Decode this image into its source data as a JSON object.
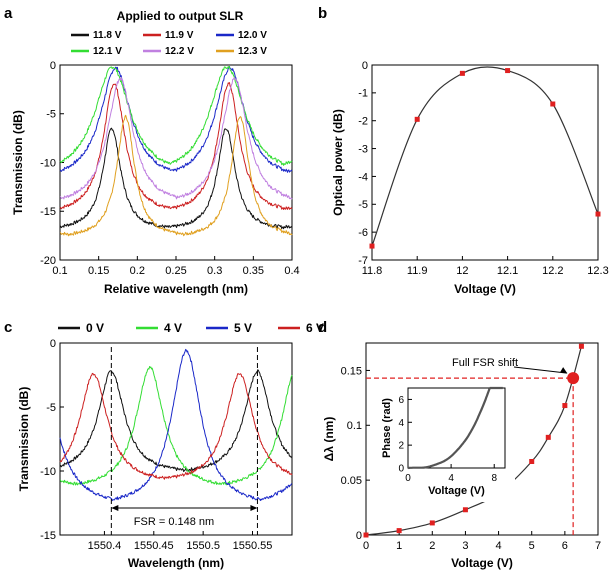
{
  "panels": {
    "a": {
      "label": "a"
    },
    "b": {
      "label": "b"
    },
    "c": {
      "label": "c"
    },
    "d": {
      "label": "d"
    }
  },
  "chart_data": [
    {
      "id": "a",
      "type": "line",
      "title": "Applied to output SLR",
      "xlabel": "Relative wavelength (nm)",
      "ylabel": "Transmission (dB)",
      "xlim": [
        0.1,
        0.4
      ],
      "ylim": [
        -20,
        0
      ],
      "xticks": [
        "0.1",
        "0.15",
        "0.2",
        "0.25",
        "0.3",
        "0.35",
        "0.4"
      ],
      "yticks": [
        "0",
        "-5",
        "-10",
        "-15",
        "-20"
      ],
      "series": [
        {
          "name": "11.8 V",
          "color": "#111111",
          "center": 0.167,
          "fsr": 0.148,
          "peak": -6.5,
          "floor": -17.0,
          "width": 0.014
        },
        {
          "name": "11.9 V",
          "color": "#cc2020",
          "center": 0.17,
          "fsr": 0.148,
          "peak": -1.9,
          "floor": -15.4,
          "width": 0.017
        },
        {
          "name": "12.0 V",
          "color": "#1a28c8",
          "center": 0.172,
          "fsr": 0.148,
          "peak": -0.3,
          "floor": -12.0,
          "width": 0.024
        },
        {
          "name": "12.1 V",
          "color": "#33dd33",
          "center": 0.168,
          "fsr": 0.148,
          "peak": -0.2,
          "floor": -11.6,
          "width": 0.028
        },
        {
          "name": "12.2 V",
          "color": "#c080e0",
          "center": 0.178,
          "fsr": 0.148,
          "peak": -1.4,
          "floor": -14.5,
          "width": 0.02
        },
        {
          "name": "12.3 V",
          "color": "#e0a020",
          "center": 0.185,
          "fsr": 0.148,
          "peak": -5.3,
          "floor": -17.8,
          "width": 0.014
        }
      ]
    },
    {
      "id": "b",
      "type": "scatter",
      "xlabel": "Voltage (V)",
      "ylabel": "Optical power (dB)",
      "xlim": [
        11.8,
        12.3
      ],
      "ylim": [
        -7,
        0
      ],
      "xticks": [
        "11.8",
        "11.9",
        "12",
        "12.1",
        "12.2",
        "12.3"
      ],
      "yticks": [
        "0",
        "-1",
        "-2",
        "-3",
        "-4",
        "-5",
        "-6",
        "-7"
      ],
      "x": [
        11.8,
        11.9,
        12.0,
        12.1,
        12.2,
        12.3
      ],
      "y": [
        -6.5,
        -1.95,
        -0.3,
        -0.2,
        -1.4,
        -5.35
      ],
      "fit_peak": {
        "x": 12.07,
        "y": -0.12
      }
    },
    {
      "id": "c",
      "type": "line",
      "xlabel": "Wavelength (nm)",
      "ylabel": "Transmission (dB)",
      "xlim": [
        1550.355,
        1550.59
      ],
      "ylim": [
        -15,
        0
      ],
      "xticks": [
        "1550.4",
        "1550.45",
        "1550.5",
        "1550.55"
      ],
      "yticks": [
        "0",
        "-5",
        "-10",
        "-15"
      ],
      "fsr_label": "FSR = 0.148 nm",
      "fsr_markers": [
        1550.407,
        1550.555
      ],
      "series": [
        {
          "name": "0 V",
          "color": "#111111",
          "center": 1550.407,
          "fsr": 0.148,
          "peak": -2.2,
          "floor": -10.3,
          "width": 0.016
        },
        {
          "name": "4 V",
          "color": "#33dd33",
          "center": 1550.446,
          "fsr": 0.148,
          "peak": -1.9,
          "floor": -11.5,
          "width": 0.017
        },
        {
          "name": "5 V",
          "color": "#1a28c8",
          "center": 1550.483,
          "fsr": 0.148,
          "peak": -0.6,
          "floor": -12.9,
          "width": 0.018
        },
        {
          "name": "6 V",
          "color": "#cc2020",
          "center": 1550.389,
          "fsr": 0.148,
          "peak": -2.4,
          "floor": -11.0,
          "width": 0.017
        }
      ]
    },
    {
      "id": "d",
      "type": "scatter",
      "xlabel": "Voltage (V)",
      "ylabel": "Δλ (nm)",
      "xlim": [
        0,
        7
      ],
      "ylim": [
        0,
        0.175
      ],
      "xticks": [
        "0",
        "1",
        "2",
        "3",
        "4",
        "5",
        "6",
        "7"
      ],
      "yticks": [
        "0",
        "0.05",
        "0.1",
        "0.15"
      ],
      "x": [
        0,
        1,
        2,
        3,
        4,
        5,
        5.5,
        6,
        6.5
      ],
      "y": [
        0,
        0.004,
        0.011,
        0.023,
        0.038,
        0.067,
        0.089,
        0.118,
        0.172
      ],
      "highlight": {
        "x": 6.25,
        "y": 0.143,
        "label": "Full FSR shift"
      },
      "inset": {
        "type": "line",
        "xlabel": "Voltage (V)",
        "ylabel": "Phase (rad)",
        "xlim": [
          0,
          9
        ],
        "ylim": [
          0,
          7
        ],
        "xticks": [
          "0",
          "4",
          "8"
        ],
        "yticks": [
          "0",
          "2",
          "4",
          "6"
        ],
        "coef": 0.16
      }
    }
  ]
}
